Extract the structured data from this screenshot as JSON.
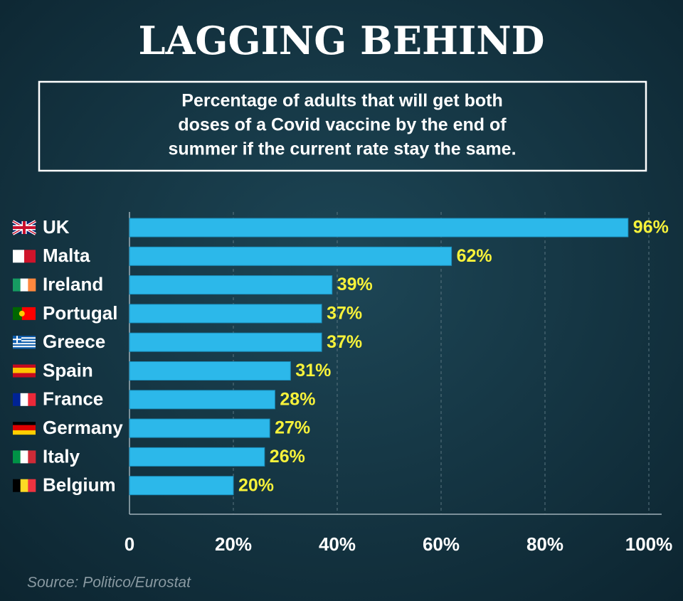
{
  "chart_data": {
    "type": "hbar",
    "title": "LAGGING BEHIND",
    "subtitle": [
      "Percentage of adults that will get both",
      "doses of a Covid vaccine by the end of",
      "summer if the current rate stay the same."
    ],
    "categories": [
      "UK",
      "Malta",
      "Ireland",
      "Portugal",
      "Greece",
      "Spain",
      "France",
      "Germany",
      "Italy",
      "Belgium"
    ],
    "values": [
      96,
      62,
      39,
      37,
      37,
      31,
      28,
      27,
      26,
      20
    ],
    "value_labels": [
      "96%",
      "62%",
      "39%",
      "37%",
      "37%",
      "31%",
      "28%",
      "27%",
      "26%",
      "20%"
    ],
    "color": "#2cb8ea",
    "xlim": [
      0,
      100
    ],
    "xticks": [
      0,
      {
        "value": 20,
        "label": "20%"
      },
      {
        "value": 40,
        "label": "40%"
      },
      {
        "value": 60,
        "label": "60%"
      },
      {
        "value": 80,
        "label": "80%"
      },
      {
        "value": 100,
        "label": "100%"
      }
    ],
    "grid": true,
    "source": "Source: Politico/Eurostat"
  }
}
